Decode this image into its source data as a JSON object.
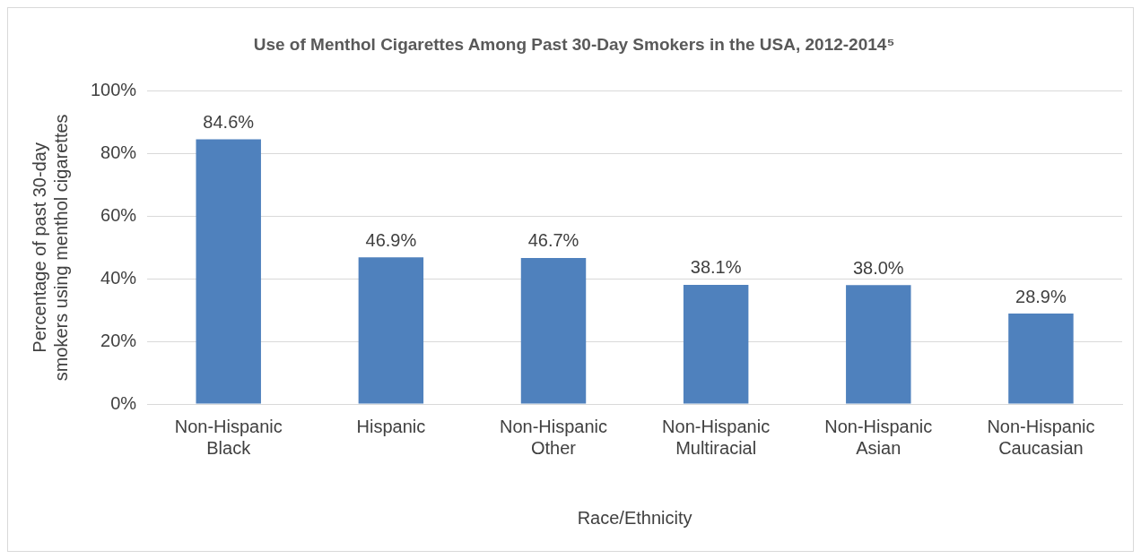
{
  "chart_data": {
    "type": "bar",
    "title": "Use of Menthol Cigarettes Among Past 30-Day Smokers in the USA, 2012-2014⁵",
    "xlabel": "Race/Ethnicity",
    "ylabel": "Percentage of past 30-day smokers using menthol cigarettes",
    "categories": [
      "Non-Hispanic Black",
      "Hispanic",
      "Non-Hispanic Other",
      "Non-Hispanic Multiracial",
      "Non-Hispanic Asian",
      "Non-Hispanic Caucasian"
    ],
    "values": [
      84.6,
      46.9,
      46.7,
      38.1,
      38.0,
      28.9
    ],
    "value_labels": [
      "84.6%",
      "46.9%",
      "46.7%",
      "38.1%",
      "38.0%",
      "28.9%"
    ],
    "color": "#4f81bd",
    "ylim": [
      0,
      100
    ],
    "yticks": [
      {
        "value": 0,
        "label": "0%"
      },
      {
        "value": 20,
        "label": "20%"
      },
      {
        "value": 40,
        "label": "40%"
      },
      {
        "value": 60,
        "label": "60%"
      },
      {
        "value": 80,
        "label": "80%"
      },
      {
        "value": 100,
        "label": "100%"
      }
    ],
    "grid": "y",
    "legend": false
  }
}
